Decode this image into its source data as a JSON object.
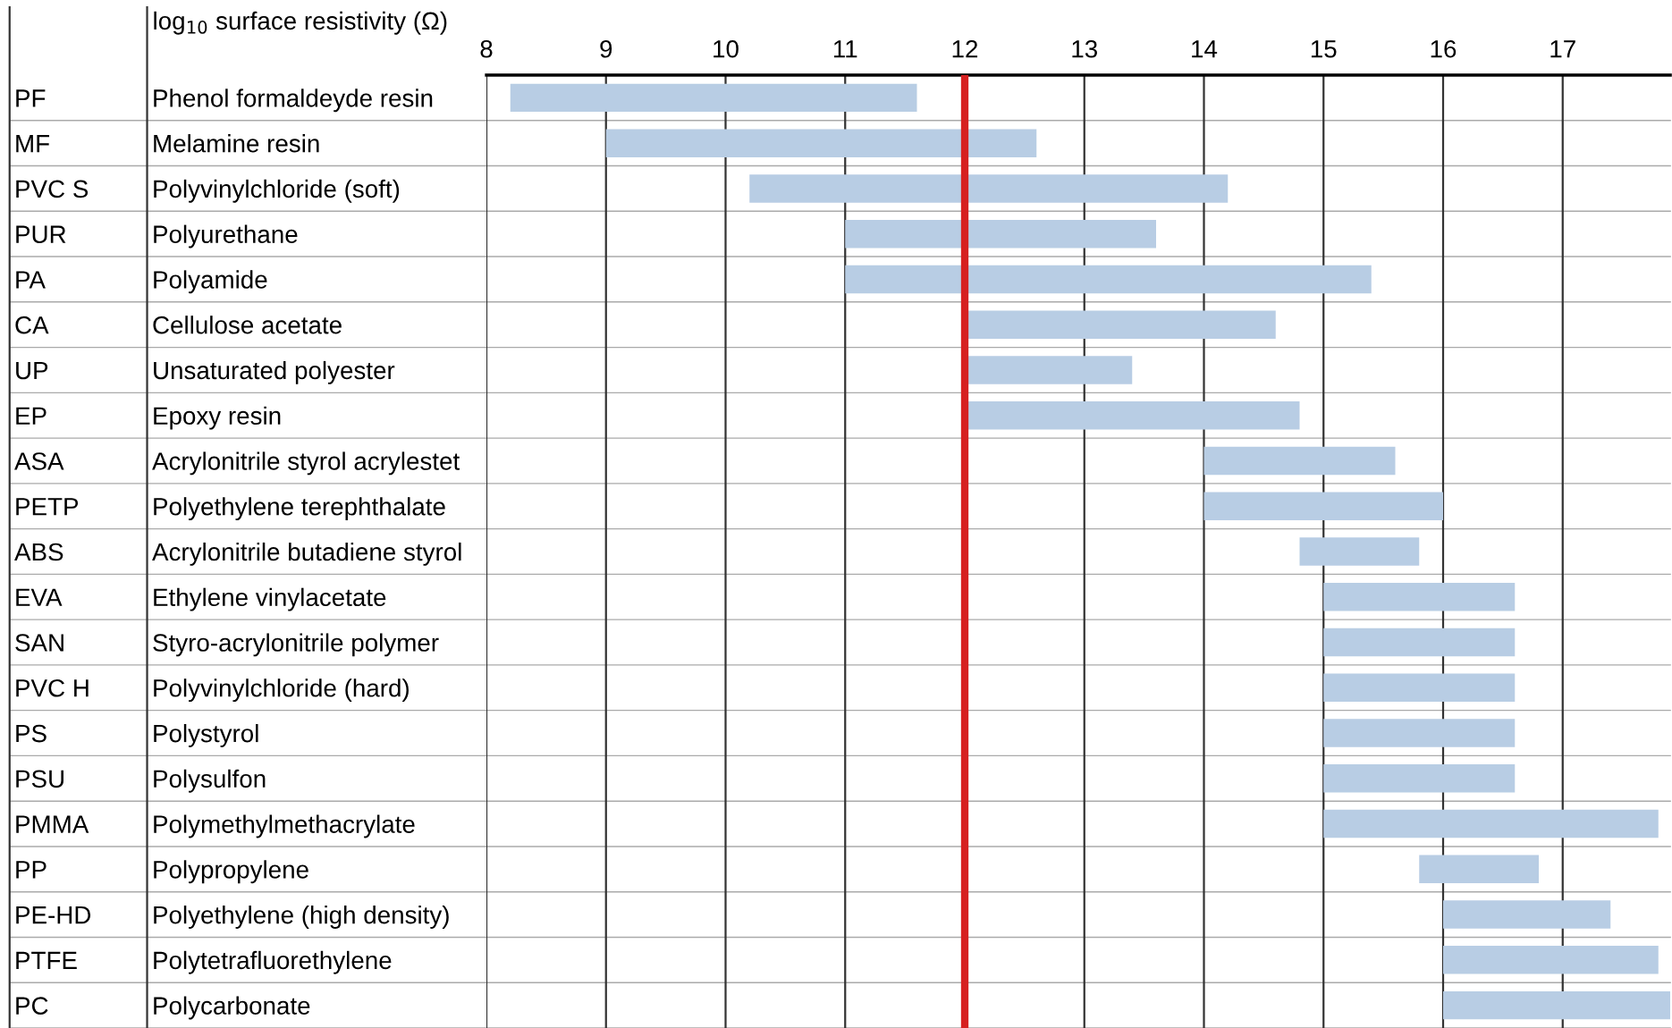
{
  "chart_data": {
    "type": "bar",
    "orientation": "horizontal",
    "xlabel": "log$_{10}$ surface resistivity (Ω)",
    "categories": [
      "Phenol formaldeyde resin",
      "Melamine resin",
      "Polyvinylchloride (soft)",
      "Polyurethane",
      "Polyamide",
      "Cellulose acetate",
      "Unsaturated polyester",
      "Epoxy resin",
      "Acrylonitrile styrol acrylestet",
      "Polyethylene terephthalate",
      "Acrylonitrile butadiene styrol",
      "Ethylene vinylacetate",
      "Styro-acrylonitrile polymer",
      "Polyvinylchloride (hard)",
      "Polystyrol",
      "Polysulfon",
      "Polymethylmethacrylate",
      "Polypropylene",
      "Polyethylene (high density)",
      "Polytetrafluorethylene",
      "Polycarbonate"
    ],
    "y2_categories": [
      "PF",
      "MF",
      "PVC S",
      "PUR",
      "PA",
      "CA",
      "UP",
      "EP",
      "ASA",
      "PETP",
      "ABS",
      "EVA",
      "SAN",
      "PVC H",
      "PS",
      "PSU",
      "PMMA",
      "PP",
      "PE-HD",
      "PTFE",
      "PC"
    ],
    "base": [
      8.2,
      9.0,
      10.2,
      11.0,
      11.0,
      12.0,
      12.0,
      12.0,
      14.0,
      14.0,
      14.8,
      15.0,
      15.0,
      15.0,
      15.0,
      15.0,
      15.0,
      15.8,
      16.0,
      16.0,
      16.0
    ],
    "values": [
      3.4,
      3.6,
      4.0,
      2.6,
      4.4,
      2.6,
      1.4,
      2.8,
      1.6,
      2.0,
      1.0,
      1.6,
      1.6,
      1.6,
      1.6,
      1.6,
      2.8,
      1.0,
      1.4,
      1.8,
      1.9
    ],
    "color": "#b8cde4",
    "xlim": [
      8,
      17.9
    ],
    "xticks": [
      8,
      9,
      10,
      11,
      12,
      13,
      14,
      15,
      16,
      17
    ],
    "grid": "x",
    "ref_lines": [
      {
        "axis": "x",
        "value": 12,
        "color": "#d62020"
      }
    ]
  }
}
